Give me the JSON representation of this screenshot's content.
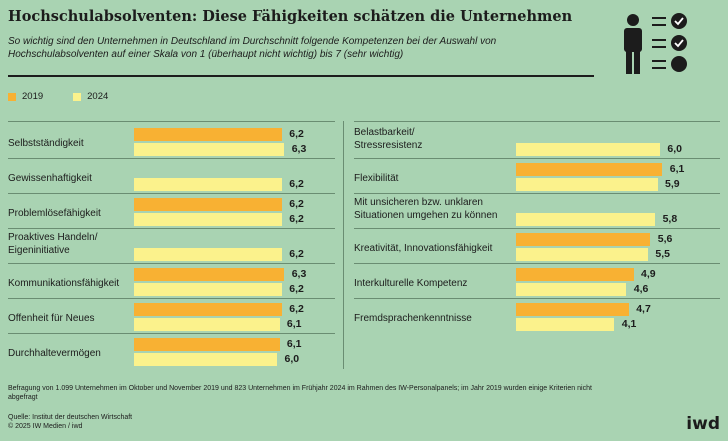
{
  "header": {
    "title": "Hochschulabsolventen: Diese Fähigkeiten schätzen die Unternehmen",
    "subtitle": "So wichtig sind den Unternehmen in Deutschland im Durchschnitt folgende Kompetenzen bei der Auswahl von Hochschulabsolventen auf einer Skala von 1 (überhaupt nicht wichtig) bis 7 (sehr wichtig)"
  },
  "legend": {
    "series_2019": "2019",
    "series_2024": "2024"
  },
  "colors": {
    "s2019": "#f8b133",
    "s2024": "#fbf28c",
    "background": "#a9d3b2"
  },
  "icon": "person-checklist-icon",
  "chart_data": {
    "type": "bar",
    "orientation": "horizontal",
    "xlim": [
      0,
      7
    ],
    "series_names": [
      "2019",
      "2024"
    ],
    "left": [
      {
        "label": "Selbstständigkeit",
        "v2019": 6.2,
        "v2024": 6.3,
        "t2019": "6,2",
        "t2024": "6,3"
      },
      {
        "label": "Gewissenhaftigkeit",
        "v2019": null,
        "v2024": 6.2,
        "t2019": "",
        "t2024": "6,2"
      },
      {
        "label": "Problemlösefähigkeit",
        "v2019": 6.2,
        "v2024": 6.2,
        "t2019": "6,2",
        "t2024": "6,2"
      },
      {
        "label": "Proaktives Handeln/\nEigeninitiative",
        "v2019": null,
        "v2024": 6.2,
        "t2019": "",
        "t2024": "6,2"
      },
      {
        "label": "Kommunikationsfähigkeit",
        "v2019": 6.3,
        "v2024": 6.2,
        "t2019": "6,3",
        "t2024": "6,2"
      },
      {
        "label": "Offenheit für Neues",
        "v2019": 6.2,
        "v2024": 6.1,
        "t2019": "6,2",
        "t2024": "6,1"
      },
      {
        "label": "Durchhaltevermögen",
        "v2019": 6.1,
        "v2024": 6.0,
        "t2019": "6,1",
        "t2024": "6,0"
      }
    ],
    "right": [
      {
        "label": "Belastbarkeit/\nStressresistenz",
        "v2019": null,
        "v2024": 6.0,
        "t2019": "",
        "t2024": "6,0"
      },
      {
        "label": "Flexibilität",
        "v2019": 6.1,
        "v2024": 5.9,
        "t2019": "6,1",
        "t2024": "5,9"
      },
      {
        "label": "Mit unsicheren bzw. unklaren\nSituationen umgehen zu können",
        "v2019": null,
        "v2024": 5.8,
        "t2019": "",
        "t2024": "5,8"
      },
      {
        "label": "Kreativität, Innovationsfähigkeit",
        "v2019": 5.6,
        "v2024": 5.5,
        "t2019": "5,6",
        "t2024": "5,5"
      },
      {
        "label": "Interkulturelle Kompetenz",
        "v2019": 4.9,
        "v2024": 4.6,
        "t2019": "4,9",
        "t2024": "4,6"
      },
      {
        "label": "Fremdsprachenkenntnisse",
        "v2019": 4.7,
        "v2024": 4.1,
        "t2019": "4,7",
        "t2024": "4,1"
      }
    ]
  },
  "footer": {
    "note": "Befragung von 1.099 Unternehmen im Oktober und November 2019 und 823 Unternehmen im Frühjahr 2024 im Rahmen des IW-Personalpanels; im Jahr 2019 wurden einige Kriterien nicht abgefragt",
    "source": "Quelle: Institut der deutschen Wirtschaft",
    "copyright": "© 2025 IW Medien / iwd",
    "logo": "iwd"
  }
}
